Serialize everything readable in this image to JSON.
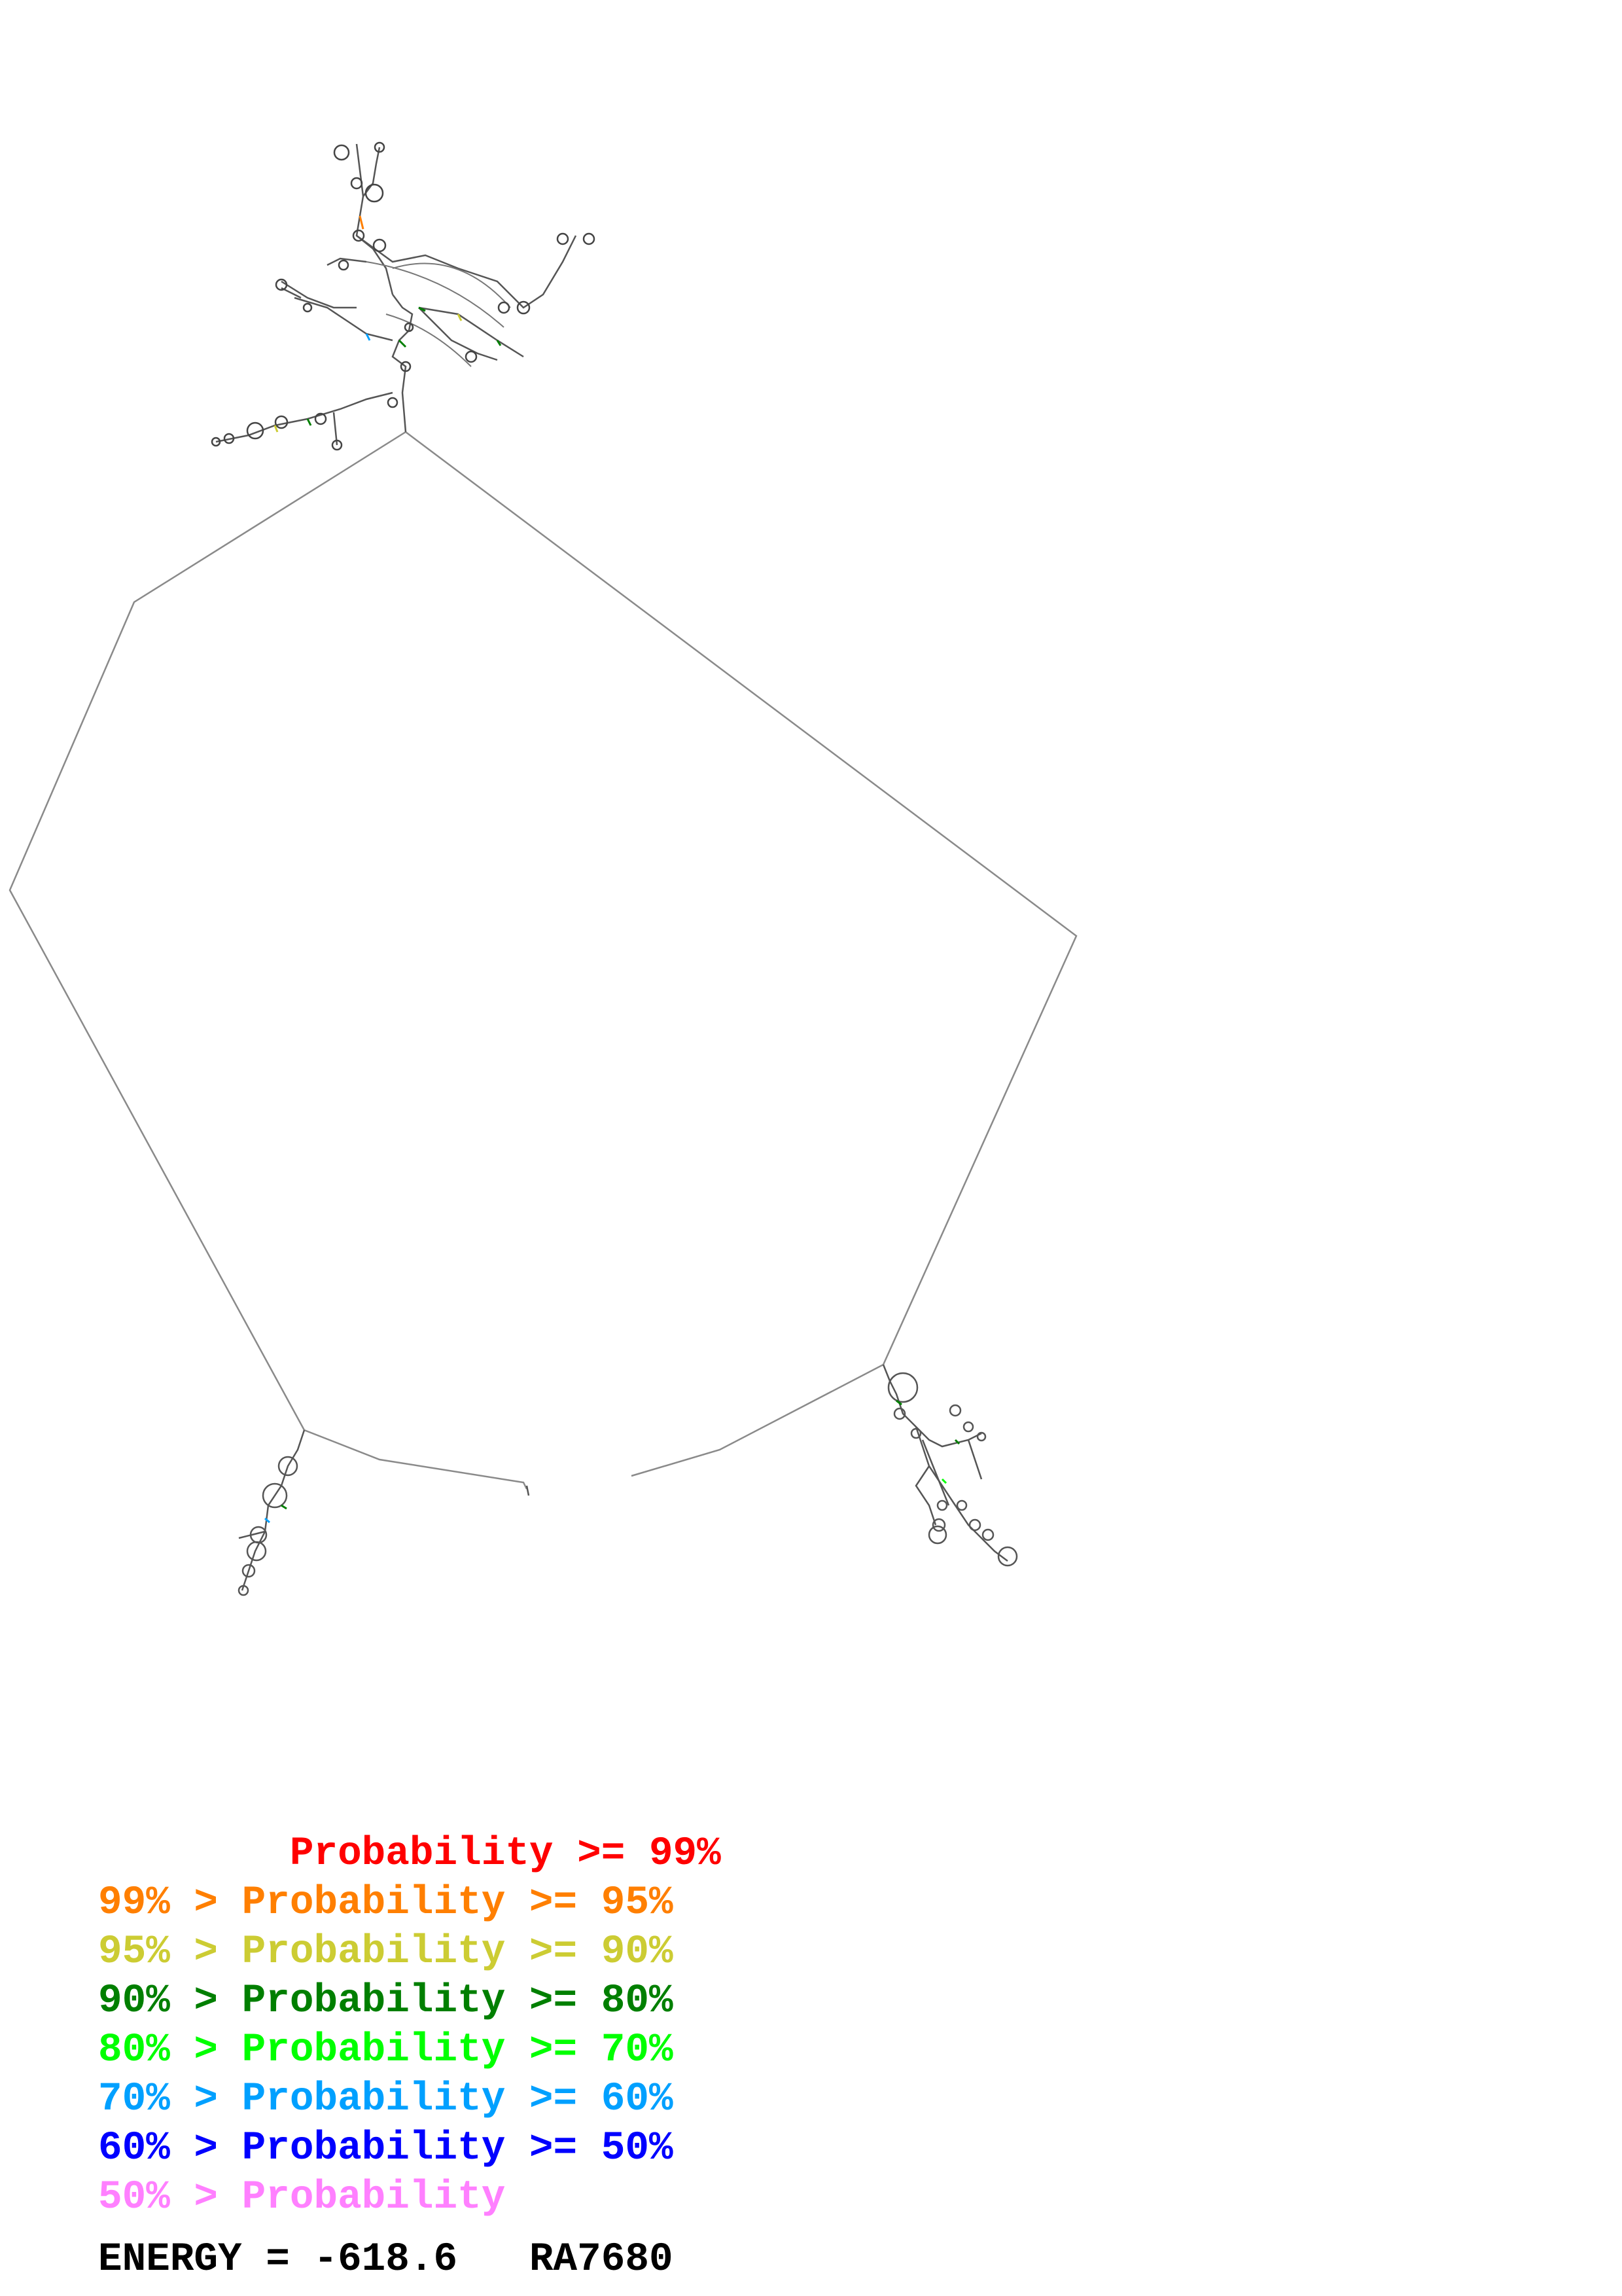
{
  "legend": [
    {
      "prefix": "        ",
      "label": "Probability >= 99%",
      "color": "#ff0000"
    },
    {
      "prefix": "99% > ",
      "label": "Probability >= 95%",
      "color": "#ff7f00"
    },
    {
      "prefix": "95% > ",
      "label": "Probability >= 90%",
      "color": "#cccc33"
    },
    {
      "prefix": "90% > ",
      "label": "Probability >= 80%",
      "color": "#007f00"
    },
    {
      "prefix": "80% > ",
      "label": "Probability >= 70%",
      "color": "#00ff00"
    },
    {
      "prefix": "70% > ",
      "label": "Probability >= 60%",
      "color": "#00a0ff"
    },
    {
      "prefix": "60% > ",
      "label": "Probability >= 50%",
      "color": "#0000ff"
    },
    {
      "prefix": "50% > ",
      "label": "Probability",
      "color": "#ff80ff"
    }
  ],
  "energy": {
    "label": "ENERGY = ",
    "value": "-618.6",
    "id": "RA7680"
  }
}
